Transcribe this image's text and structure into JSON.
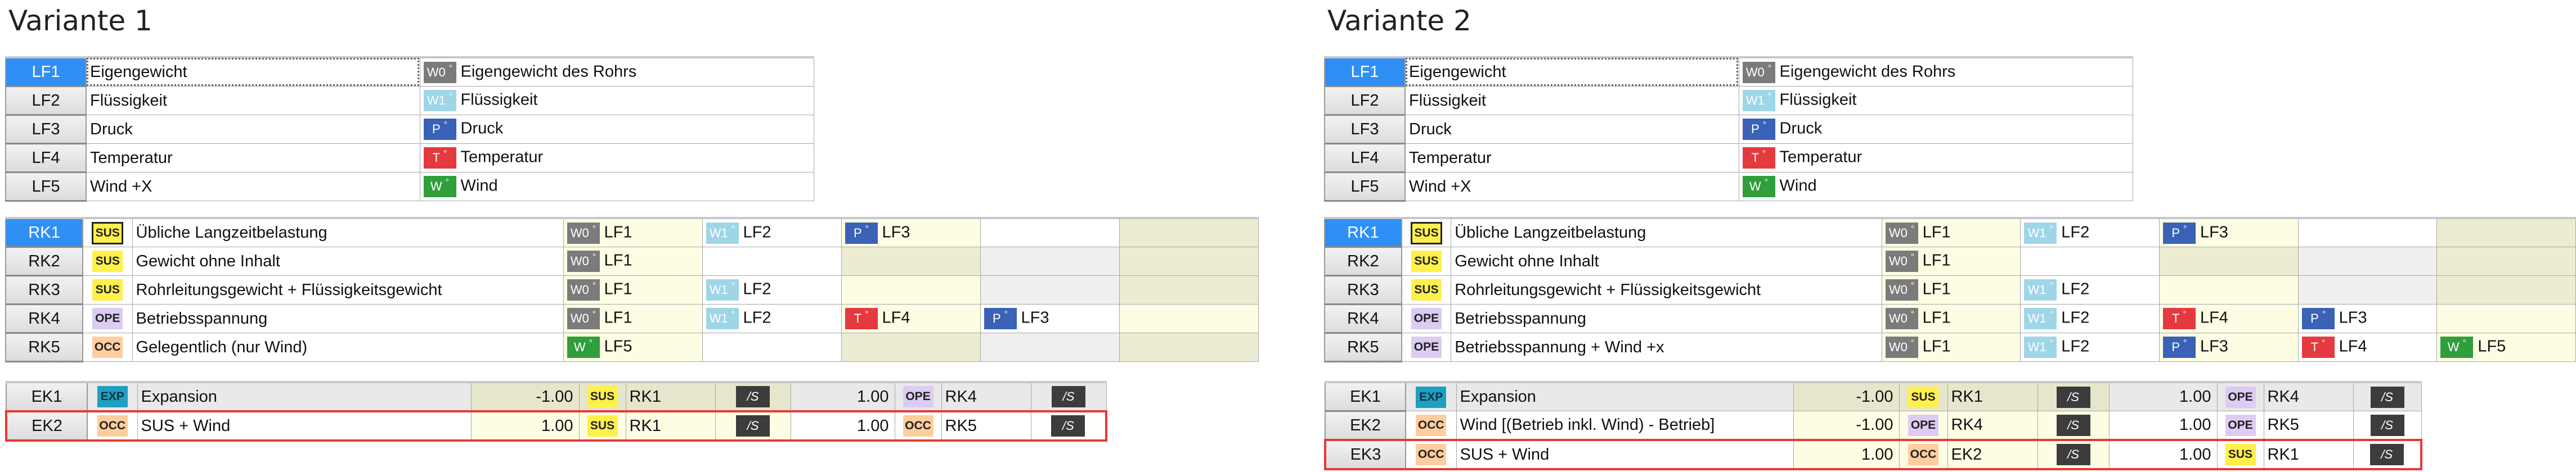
{
  "badge_suffix": "°",
  "operator_label": "/S",
  "badge_colors": {
    "W0": "#7b7b7b",
    "W1": "#9ed6e8",
    "P": "#3a62b6",
    "T": "#e53940",
    "W": "#2f9e3b"
  },
  "category_colors": {
    "SUS": "#fff04c",
    "OPE": "#dccbf2",
    "OCC": "#ffcd9e",
    "EXP": "#1f9fc1"
  },
  "selection_color": "#2f8ff5",
  "highlight_color": "#e53935",
  "variants": [
    {
      "title": "Variante 1",
      "load_cases": [
        {
          "id": "LF1",
          "name": "Eigengewicht",
          "type": "W0",
          "description": "Eigengewicht des Rohrs",
          "selected": true
        },
        {
          "id": "LF2",
          "name": "Flüssigkeit",
          "type": "W1",
          "description": "Flüssigkeit"
        },
        {
          "id": "LF3",
          "name": "Druck",
          "type": "P",
          "description": "Druck"
        },
        {
          "id": "LF4",
          "name": "Temperatur",
          "type": "T",
          "description": "Temperatur"
        },
        {
          "id": "LF5",
          "name": "Wind +X",
          "type": "W",
          "description": "Wind"
        }
      ],
      "load_combinations": [
        {
          "id": "RK1",
          "category": "SUS",
          "description": "Übliche Langzeitbelastung",
          "selected": true,
          "items": [
            {
              "type": "W0",
              "lf": "LF1"
            },
            {
              "type": "W1",
              "lf": "LF2"
            },
            {
              "type": "P",
              "lf": "LF3"
            }
          ]
        },
        {
          "id": "RK2",
          "category": "SUS",
          "description": "Gewicht ohne Inhalt",
          "items": [
            {
              "type": "W0",
              "lf": "LF1"
            }
          ]
        },
        {
          "id": "RK3",
          "category": "SUS",
          "description": "Rohrleitungsgewicht + Flüssigkeitsgewicht",
          "items": [
            {
              "type": "W0",
              "lf": "LF1"
            },
            {
              "type": "W1",
              "lf": "LF2"
            }
          ]
        },
        {
          "id": "RK4",
          "category": "OPE",
          "description": "Betriebsspannung",
          "items": [
            {
              "type": "W0",
              "lf": "LF1"
            },
            {
              "type": "W1",
              "lf": "LF2"
            },
            {
              "type": "T",
              "lf": "LF4"
            },
            {
              "type": "P",
              "lf": "LF3"
            }
          ]
        },
        {
          "id": "RK5",
          "category": "OCC",
          "description": "Gelegentlich (nur Wind)",
          "items": [
            {
              "type": "W",
              "lf": "LF5"
            }
          ]
        }
      ],
      "result_combinations": [
        {
          "id": "EK1",
          "category": "EXP",
          "description": "Expansion",
          "terms": [
            {
              "factor": "-1.00",
              "category": "SUS",
              "ref": "RK1"
            },
            {
              "factor": "1.00",
              "category": "OPE",
              "ref": "RK4"
            }
          ]
        },
        {
          "id": "EK2",
          "category": "OCC",
          "description": "SUS + Wind",
          "highlighted": true,
          "terms": [
            {
              "factor": "1.00",
              "category": "SUS",
              "ref": "RK1"
            },
            {
              "factor": "1.00",
              "category": "OCC",
              "ref": "RK5"
            }
          ]
        }
      ]
    },
    {
      "title": "Variante 2",
      "load_cases": [
        {
          "id": "LF1",
          "name": "Eigengewicht",
          "type": "W0",
          "description": "Eigengewicht des Rohrs",
          "selected": true
        },
        {
          "id": "LF2",
          "name": "Flüssigkeit",
          "type": "W1",
          "description": "Flüssigkeit"
        },
        {
          "id": "LF3",
          "name": "Druck",
          "type": "P",
          "description": "Druck"
        },
        {
          "id": "LF4",
          "name": "Temperatur",
          "type": "T",
          "description": "Temperatur"
        },
        {
          "id": "LF5",
          "name": "Wind +X",
          "type": "W",
          "description": "Wind"
        }
      ],
      "load_combinations": [
        {
          "id": "RK1",
          "category": "SUS",
          "description": "Übliche Langzeitbelastung",
          "selected": true,
          "items": [
            {
              "type": "W0",
              "lf": "LF1"
            },
            {
              "type": "W1",
              "lf": "LF2"
            },
            {
              "type": "P",
              "lf": "LF3"
            }
          ]
        },
        {
          "id": "RK2",
          "category": "SUS",
          "description": "Gewicht ohne Inhalt",
          "items": [
            {
              "type": "W0",
              "lf": "LF1"
            }
          ]
        },
        {
          "id": "RK3",
          "category": "SUS",
          "description": "Rohrleitungsgewicht + Flüssigkeitsgewicht",
          "items": [
            {
              "type": "W0",
              "lf": "LF1"
            },
            {
              "type": "W1",
              "lf": "LF2"
            }
          ]
        },
        {
          "id": "RK4",
          "category": "OPE",
          "description": "Betriebsspannung",
          "items": [
            {
              "type": "W0",
              "lf": "LF1"
            },
            {
              "type": "W1",
              "lf": "LF2"
            },
            {
              "type": "T",
              "lf": "LF4"
            },
            {
              "type": "P",
              "lf": "LF3"
            }
          ]
        },
        {
          "id": "RK5",
          "category": "OPE",
          "description": "Betriebsspannung + Wind +x",
          "items": [
            {
              "type": "W0",
              "lf": "LF1"
            },
            {
              "type": "W1",
              "lf": "LF2"
            },
            {
              "type": "P",
              "lf": "LF3"
            },
            {
              "type": "T",
              "lf": "LF4"
            },
            {
              "type": "W",
              "lf": "LF5"
            }
          ]
        }
      ],
      "result_combinations": [
        {
          "id": "EK1",
          "category": "EXP",
          "description": "Expansion",
          "terms": [
            {
              "factor": "-1.00",
              "category": "SUS",
              "ref": "RK1"
            },
            {
              "factor": "1.00",
              "category": "OPE",
              "ref": "RK4"
            }
          ]
        },
        {
          "id": "EK2",
          "category": "OCC",
          "description": "Wind [(Betrieb inkl. Wind) - Betrieb]",
          "terms": [
            {
              "factor": "-1.00",
              "category": "OPE",
              "ref": "RK4"
            },
            {
              "factor": "1.00",
              "category": "OPE",
              "ref": "RK5"
            }
          ]
        },
        {
          "id": "EK3",
          "category": "OCC",
          "description": "SUS + Wind",
          "highlighted": true,
          "terms": [
            {
              "factor": "1.00",
              "category": "OCC",
              "ref": "EK2"
            },
            {
              "factor": "1.00",
              "category": "SUS",
              "ref": "RK1"
            }
          ]
        }
      ]
    }
  ]
}
